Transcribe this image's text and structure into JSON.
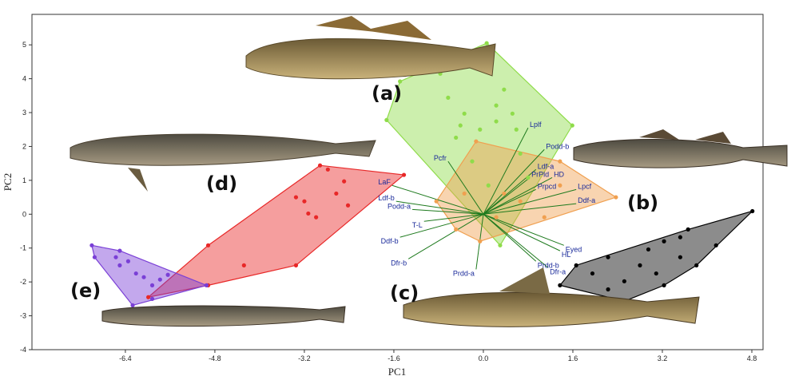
{
  "chart_data": {
    "type": "scatter",
    "xlabel": "PC1",
    "ylabel": "PC2",
    "xlim": [
      -8.07,
      5.0
    ],
    "ylim": [
      -4,
      5.9
    ],
    "xticks": [
      -6.4,
      -4.8,
      -3.2,
      -1.6,
      {
        "value": 0,
        "label": "0.0"
      },
      1.6,
      3.2,
      4.8
    ],
    "yticks": [
      -4,
      -3,
      -2,
      -1,
      0,
      1,
      2,
      3,
      4,
      5
    ],
    "series": [
      {
        "name": "(a)",
        "color": "#8fdc4a",
        "x": [
          0.06,
          -1.73,
          -1.49,
          1.59,
          0.3,
          -0.63,
          -0.34,
          -0.06,
          0.23,
          0.52,
          -0.49,
          -0.2,
          0.66,
          0.37,
          -0.77,
          0.8,
          0.09,
          -0.41,
          0.23,
          0.59
        ],
        "y": [
          5.05,
          2.78,
          3.92,
          2.62,
          -0.92,
          3.44,
          2.97,
          2.5,
          2.74,
          2.97,
          2.26,
          1.56,
          1.79,
          3.68,
          4.15,
          1.08,
          0.85,
          2.62,
          3.21,
          2.5
        ]
      },
      {
        "name": "(b)",
        "color": "#f0a050",
        "x": [
          -0.13,
          -0.84,
          -0.06,
          2.37,
          1.37,
          -0.34,
          0.37,
          0.66,
          1.09,
          0.23,
          1.37,
          -0.49
        ],
        "y": [
          2.15,
          0.38,
          -0.8,
          0.5,
          1.56,
          0.61,
          0.61,
          0.38,
          -0.09,
          -0.09,
          0.85,
          -0.45
        ]
      },
      {
        "name": "(c)",
        "color": "#000000",
        "x": [
          4.81,
          2.52,
          1.37,
          3.66,
          4.16,
          3.23,
          2.23,
          2.8,
          3.09,
          1.95,
          3.52,
          2.52,
          3.23,
          3.81,
          2.23,
          1.66,
          2.95,
          3.52
        ],
        "y": [
          0.09,
          -2.57,
          -2.1,
          -0.45,
          -0.92,
          -0.8,
          -1.27,
          -1.51,
          -1.75,
          -1.75,
          -1.27,
          -1.98,
          -2.1,
          -1.51,
          -2.22,
          -1.51,
          -1.04,
          -0.68
        ]
      },
      {
        "name": "(d)",
        "color": "#e82828",
        "x": [
          -1.42,
          -2.92,
          -4.92,
          -5.99,
          -3.35,
          -4.28,
          -4.92,
          -3.35,
          -3.2,
          -3.13,
          -2.99,
          -2.63,
          -2.49,
          -2.78,
          -2.42
        ],
        "y": [
          1.16,
          1.44,
          -2.1,
          -2.45,
          -1.51,
          -1.51,
          -0.92,
          0.5,
          0.38,
          0.02,
          -0.09,
          0.61,
          0.97,
          1.32,
          0.26
        ]
      },
      {
        "name": "(e)",
        "color": "#7a3fd6",
        "x": [
          -7.0,
          -6.95,
          -6.27,
          -4.95,
          -6.5,
          -6.5,
          -6.35,
          -6.21,
          -6.07,
          -5.78,
          -5.92,
          -5.64,
          -6.57,
          -5.92
        ],
        "y": [
          -0.92,
          -1.27,
          -2.69,
          -2.1,
          -1.08,
          -1.51,
          -1.39,
          -1.75,
          -1.86,
          -1.93,
          -2.1,
          -1.79,
          -1.27,
          -2.5
        ]
      }
    ],
    "vectors": [
      {
        "label": "Lplf",
        "x": 0.8,
        "y": 2.55
      },
      {
        "label": "Podd-b",
        "x": 1.09,
        "y": 1.91
      },
      {
        "label": "Pcfr",
        "x": -0.63,
        "y": 1.56
      },
      {
        "label": "Ldf-a",
        "x": 0.94,
        "y": 1.32
      },
      {
        "label": "PrPld",
        "x": 0.83,
        "y": 1.08
      },
      {
        "label": "HD",
        "x": 1.23,
        "y": 1.08
      },
      {
        "label": "Prpcd",
        "x": 0.94,
        "y": 0.73
      },
      {
        "label": "Lpcf",
        "x": 1.66,
        "y": 0.73
      },
      {
        "label": "Ddf-a",
        "x": 1.66,
        "y": 0.31
      },
      {
        "label": "LaF",
        "x": -1.63,
        "y": 0.85
      },
      {
        "label": "Ldf-b",
        "x": -1.56,
        "y": 0.38
      },
      {
        "label": "Podd-a",
        "x": -1.27,
        "y": 0.14
      },
      {
        "label": "T-L",
        "x": -1.06,
        "y": -0.21
      },
      {
        "label": "Ddf-b",
        "x": -1.49,
        "y": -0.68
      },
      {
        "label": "Dfr-b",
        "x": -1.34,
        "y": -1.32
      },
      {
        "label": "Prdd-a",
        "x": -0.13,
        "y": -1.63
      },
      {
        "label": "Eyed",
        "x": 1.44,
        "y": -0.92
      },
      {
        "label": "HL",
        "x": 1.37,
        "y": -1.08
      },
      {
        "label": "Prdd-b",
        "x": 0.94,
        "y": -1.39
      },
      {
        "label": "Dfr-a",
        "x": 1.16,
        "y": -1.58
      }
    ]
  }
}
